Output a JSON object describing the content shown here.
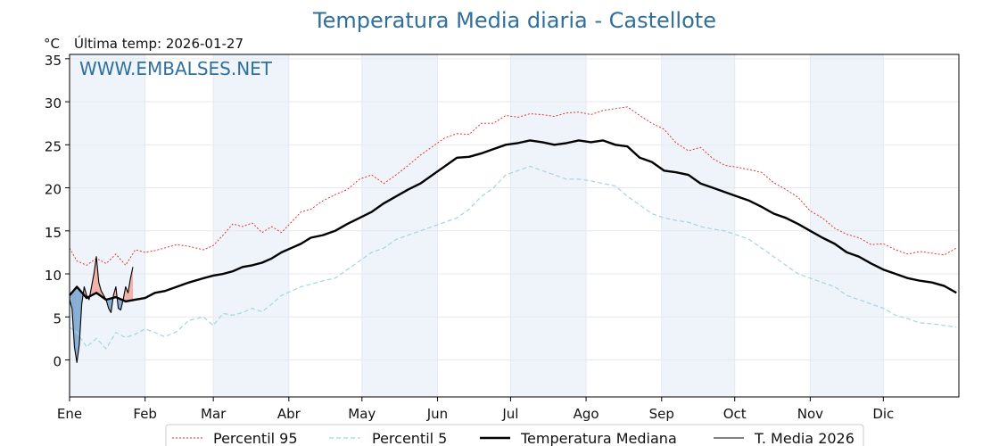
{
  "chart_data": {
    "type": "line",
    "title": "Temperatura Media diaria - Castellote",
    "unit_label": "°C",
    "subtitle": "Última temp: 2026-01-27",
    "watermark": "WWW.EMBALSES.NET",
    "ylim": [
      -4.3,
      35.5
    ],
    "xlim": [
      1,
      366
    ],
    "yticks": [
      0,
      5,
      10,
      15,
      20,
      25,
      30,
      35
    ],
    "month_labels": [
      "Ene",
      "Feb",
      "Mar",
      "Abr",
      "May",
      "Jun",
      "Jul",
      "Ago",
      "Sep",
      "Oct",
      "Nov",
      "Dic"
    ],
    "month_start_days": [
      1,
      32,
      60,
      91,
      121,
      152,
      182,
      213,
      244,
      274,
      305,
      335
    ],
    "grid": true,
    "legend_position": "bottom",
    "colors": {
      "title": "#2e6f9e",
      "p95": "#e3211c",
      "p5": "#a6d4e0",
      "median": "#000000",
      "media2026": "#000000",
      "band": "#eef4fa",
      "above_fill": "#f1a8a0",
      "below_fill": "#7aa6cf"
    },
    "series": [
      {
        "name": "Percentil 95",
        "style": "dotted",
        "x": [
          1,
          4,
          8,
          12,
          16,
          20,
          24,
          28,
          32,
          36,
          40,
          45,
          50,
          56,
          60,
          64,
          68,
          72,
          76,
          80,
          84,
          88,
          92,
          96,
          100,
          105,
          110,
          115,
          120,
          125,
          130,
          135,
          140,
          145,
          150,
          155,
          160,
          165,
          170,
          175,
          180,
          185,
          190,
          195,
          200,
          205,
          210,
          215,
          220,
          225,
          230,
          235,
          240,
          245,
          250,
          255,
          260,
          265,
          270,
          275,
          280,
          285,
          290,
          295,
          300,
          305,
          310,
          315,
          320,
          325,
          330,
          335,
          340,
          345,
          350,
          355,
          360,
          365
        ],
        "values": [
          13.0,
          11.5,
          11.0,
          11.8,
          11.2,
          12.3,
          11.0,
          12.8,
          12.5,
          12.7,
          13.0,
          13.4,
          13.2,
          12.8,
          13.3,
          14.5,
          15.8,
          15.5,
          15.9,
          14.8,
          15.5,
          14.8,
          16.0,
          17.2,
          17.5,
          18.5,
          19.2,
          19.8,
          21.0,
          21.5,
          20.5,
          21.5,
          22.6,
          23.8,
          24.8,
          25.8,
          26.3,
          26.2,
          27.5,
          27.5,
          28.4,
          28.2,
          28.6,
          28.5,
          28.3,
          28.7,
          28.8,
          28.5,
          29.0,
          29.2,
          29.4,
          28.4,
          27.5,
          26.8,
          25.2,
          24.3,
          24.7,
          23.4,
          22.6,
          22.4,
          22.1,
          21.8,
          20.6,
          19.8,
          18.9,
          17.3,
          16.5,
          15.3,
          14.6,
          14.2,
          13.4,
          13.5,
          12.8,
          12.3,
          12.6,
          12.4,
          12.2,
          13.0
        ]
      },
      {
        "name": "Percentil 5",
        "style": "dashed",
        "x": [
          1,
          4,
          8,
          12,
          16,
          20,
          24,
          28,
          32,
          36,
          40,
          45,
          50,
          56,
          60,
          64,
          68,
          72,
          76,
          80,
          84,
          88,
          92,
          96,
          100,
          105,
          110,
          115,
          120,
          125,
          130,
          135,
          140,
          145,
          150,
          155,
          160,
          165,
          170,
          175,
          180,
          185,
          190,
          195,
          200,
          205,
          210,
          215,
          220,
          225,
          230,
          235,
          240,
          245,
          250,
          255,
          260,
          265,
          270,
          275,
          280,
          285,
          290,
          295,
          300,
          305,
          310,
          315,
          320,
          325,
          330,
          335,
          340,
          345,
          350,
          355,
          360,
          365
        ],
        "values": [
          3.8,
          3.2,
          1.5,
          2.5,
          1.3,
          3.2,
          2.6,
          3.0,
          3.6,
          3.2,
          2.7,
          3.3,
          4.6,
          5.0,
          4.0,
          5.4,
          5.2,
          5.5,
          6.0,
          5.6,
          6.5,
          7.5,
          8.0,
          8.5,
          8.8,
          9.2,
          9.5,
          10.5,
          11.5,
          12.5,
          13.0,
          14.0,
          14.5,
          15.0,
          15.5,
          16.0,
          16.5,
          17.5,
          19.0,
          20.0,
          21.5,
          22.0,
          22.5,
          22.0,
          21.5,
          21.0,
          21.0,
          20.8,
          20.5,
          20.2,
          19.0,
          18.0,
          17.0,
          16.5,
          16.2,
          16.0,
          15.5,
          15.2,
          15.0,
          14.5,
          14.0,
          13.0,
          12.0,
          11.0,
          10.0,
          9.5,
          9.0,
          8.5,
          7.5,
          7.0,
          6.5,
          6.0,
          5.2,
          4.8,
          4.3,
          4.2,
          4.0,
          3.8
        ]
      },
      {
        "name": "Temperatura Mediana",
        "style": "solid-thick",
        "x": [
          1,
          4,
          8,
          12,
          16,
          20,
          24,
          28,
          32,
          36,
          40,
          45,
          50,
          56,
          60,
          64,
          68,
          72,
          76,
          80,
          84,
          88,
          92,
          96,
          100,
          105,
          110,
          115,
          120,
          125,
          130,
          135,
          140,
          145,
          150,
          155,
          160,
          165,
          170,
          175,
          180,
          185,
          190,
          195,
          200,
          205,
          210,
          215,
          220,
          225,
          230,
          235,
          240,
          245,
          250,
          255,
          260,
          265,
          270,
          275,
          280,
          285,
          290,
          295,
          300,
          305,
          310,
          315,
          320,
          325,
          330,
          335,
          340,
          345,
          350,
          355,
          360,
          365
        ],
        "values": [
          7.5,
          8.5,
          7.2,
          7.8,
          7.0,
          7.3,
          6.8,
          7.0,
          7.2,
          7.8,
          8.0,
          8.5,
          9.0,
          9.5,
          9.8,
          10.0,
          10.3,
          10.8,
          11.0,
          11.3,
          11.8,
          12.5,
          13.0,
          13.5,
          14.2,
          14.5,
          15.0,
          15.8,
          16.5,
          17.2,
          18.2,
          19.0,
          19.8,
          20.5,
          21.5,
          22.5,
          23.5,
          23.6,
          24.0,
          24.5,
          25.0,
          25.2,
          25.5,
          25.3,
          25.0,
          25.2,
          25.5,
          25.3,
          25.5,
          25.0,
          24.8,
          23.5,
          23.0,
          22.0,
          21.8,
          21.5,
          20.5,
          20.0,
          19.5,
          19.0,
          18.5,
          17.8,
          17.0,
          16.5,
          15.8,
          15.0,
          14.2,
          13.5,
          12.5,
          12.0,
          11.2,
          10.5,
          10.0,
          9.5,
          9.2,
          9.0,
          8.6,
          7.8
        ]
      },
      {
        "name": "T. Media 2026",
        "style": "solid-thin",
        "x": [
          1,
          2,
          3,
          4,
          5,
          6,
          7,
          8,
          9,
          10,
          11,
          12,
          13,
          14,
          15,
          16,
          17,
          18,
          19,
          20,
          21,
          22,
          23,
          24,
          25,
          26,
          27
        ],
        "values": [
          7.0,
          6.0,
          1.5,
          -0.3,
          1.8,
          6.5,
          8.5,
          7.5,
          7.0,
          8.5,
          10.0,
          12.0,
          9.0,
          8.0,
          7.5,
          7.0,
          6.0,
          5.5,
          7.5,
          8.5,
          6.0,
          5.8,
          7.0,
          8.5,
          7.8,
          9.5,
          10.8
        ]
      }
    ]
  }
}
